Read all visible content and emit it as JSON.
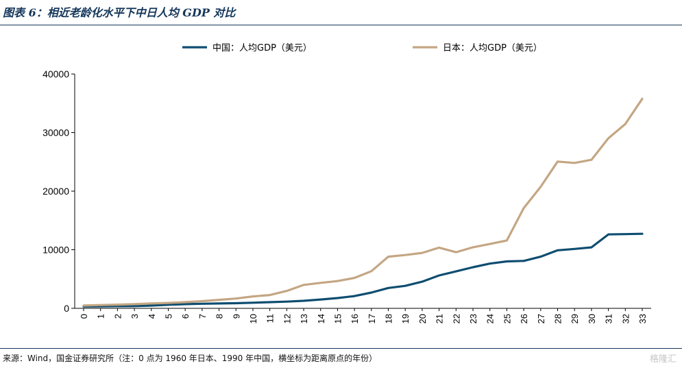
{
  "title": "图表 6：相近老龄化水平下中日人均 GDP 对比",
  "source": "来源：Wind，国金证券研究所（注：0 点为 1960 年日本、1990 年中国，横坐标为距离原点的年份）",
  "watermark": "格隆汇",
  "colors": {
    "china": "#0e4d70",
    "japan": "#c4a683",
    "rule": "#14365a"
  },
  "chart_data": {
    "type": "line",
    "x": [
      0,
      1,
      2,
      3,
      4,
      5,
      6,
      7,
      8,
      9,
      10,
      11,
      12,
      13,
      14,
      15,
      16,
      17,
      18,
      19,
      20,
      21,
      22,
      23,
      24,
      25,
      26,
      27,
      28,
      29,
      30,
      31,
      32,
      33
    ],
    "xlabel": "",
    "ylabel": "",
    "ylim": [
      0,
      40000
    ],
    "yticks": [
      0,
      10000,
      20000,
      30000,
      40000
    ],
    "grid": false,
    "legend": "top",
    "series": [
      {
        "name": "中国：人均GDP（美元）",
        "values": [
          318,
          333,
          366,
          377,
          473,
          610,
          709,
          781,
          828,
          873,
          959,
          1053,
          1149,
          1288,
          1508,
          1753,
          2099,
          2694,
          3468,
          3832,
          4550,
          5614,
          6301,
          7020,
          7636,
          8016,
          8094,
          8817,
          9905,
          10144,
          10409,
          12618,
          12662,
          12720
        ]
      },
      {
        "name": "日本：人均GDP（美元）",
        "values": [
          479,
          563,
          633,
          718,
          835,
          919,
          1058,
          1228,
          1450,
          1669,
          2037,
          2272,
          2967,
          3997,
          4353,
          4659,
          5197,
          6335,
          8821,
          9105,
          9465,
          10361,
          9578,
          10425,
          10984,
          11584,
          17111,
          20745,
          25051,
          24813,
          25359,
          29035,
          31464,
          35765
        ]
      }
    ]
  }
}
